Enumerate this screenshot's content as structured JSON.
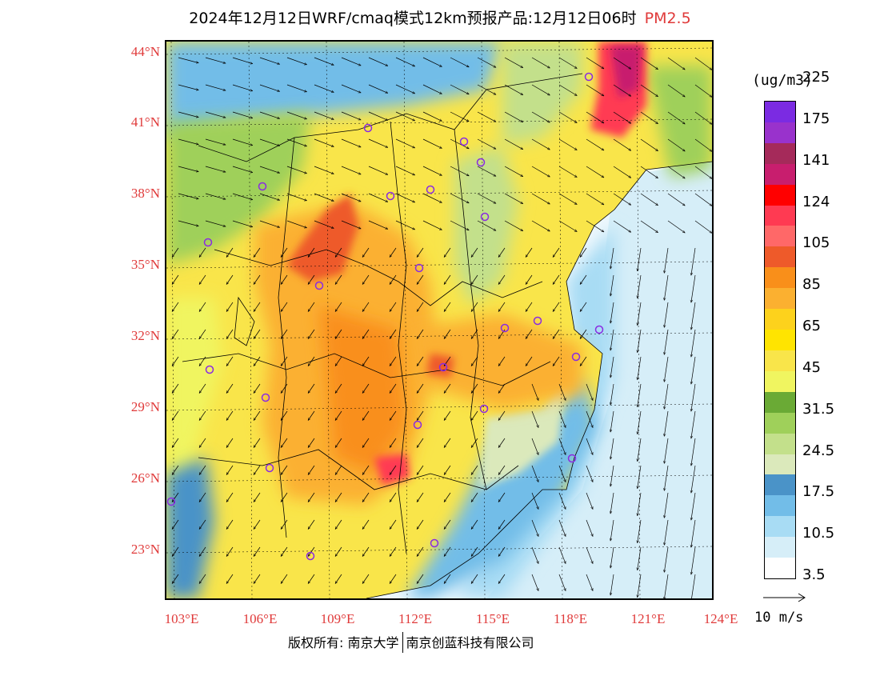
{
  "title": {
    "main": "2024年12月12日WRF/cmaq模式12km预报产品:12月12日06时",
    "pollutant": "PM2.5"
  },
  "map": {
    "lat_labels": [
      "44°N",
      "41°N",
      "38°N",
      "35°N",
      "32°N",
      "29°N",
      "26°N",
      "23°N"
    ],
    "lon_labels": [
      "103°E",
      "106°E",
      "109°E",
      "112°E",
      "115°E",
      "118°E",
      "121°E",
      "124°E"
    ],
    "extent": {
      "lon_min": 102.8,
      "lon_max": 124.0,
      "lat_min": 21.1,
      "lat_max": 44.4
    }
  },
  "colorbar": {
    "unit": "(ug/m3)",
    "colors": [
      "#ffffff",
      "#d6eef8",
      "#a8dcf4",
      "#72bde8",
      "#4a93c8",
      "#dbe9bb",
      "#c3e08b",
      "#9fd05a",
      "#6aaa35",
      "#f0f560",
      "#f9e54a",
      "#ffe400",
      "#fdd21c",
      "#fbb030",
      "#f98f1a",
      "#ee5a2a",
      "#ff6868",
      "#ff3a52",
      "#ff0000",
      "#c81e6e",
      "#a52a5a",
      "#9932cc",
      "#7b2be2"
    ],
    "labels": [
      "3.5",
      "10.5",
      "17.5",
      "24.5",
      "31.5",
      "45",
      "65",
      "85",
      "105",
      "124",
      "141",
      "175",
      "225"
    ]
  },
  "wind_reference": {
    "label": "10 m/s"
  },
  "footer": {
    "copyright_prefix": "版权所有:",
    "org1": "南京大学",
    "org2": "南京创蓝科技有限公司"
  }
}
